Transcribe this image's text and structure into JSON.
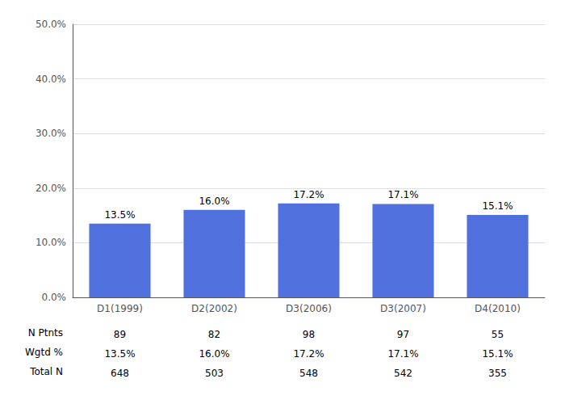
{
  "chart_data": {
    "type": "bar",
    "categories": [
      "D1(1999)",
      "D2(2002)",
      "D3(2006)",
      "D3(2007)",
      "D4(2010)"
    ],
    "values": [
      13.5,
      16.0,
      17.2,
      17.1,
      15.1
    ],
    "value_labels": [
      "13.5%",
      "16.0%",
      "17.2%",
      "17.1%",
      "15.1%"
    ],
    "data_labels": true,
    "ylim": [
      0,
      50
    ],
    "yticks": [
      {
        "value": 0,
        "label": "0.0%"
      },
      {
        "value": 10,
        "label": "10.0%"
      },
      {
        "value": 20,
        "label": "20.0%"
      },
      {
        "value": 30,
        "label": "30.0%"
      },
      {
        "value": 40,
        "label": "40.0%"
      },
      {
        "value": 50,
        "label": "50.0%"
      }
    ],
    "grid": true,
    "table": {
      "rows": [
        {
          "label": "N Ptnts",
          "values": [
            89,
            82,
            98,
            97,
            55
          ]
        },
        {
          "label": "Wgtd %",
          "values": [
            13.5,
            16.0,
            17.2,
            17.1,
            15.1
          ],
          "value_labels": [
            "13.5%",
            "16.0%",
            "17.2%",
            "17.1%",
            "15.1%"
          ]
        },
        {
          "label": "Total N",
          "values": [
            648,
            503,
            548,
            542,
            355
          ]
        }
      ]
    }
  }
}
